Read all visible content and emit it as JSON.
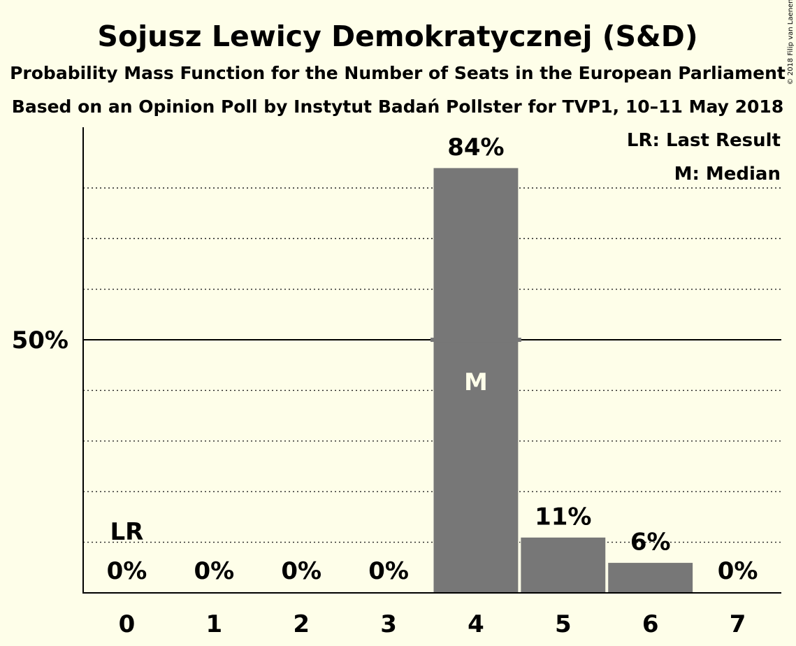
{
  "chart_data": {
    "type": "bar",
    "title": "Sojusz Lewicy Demokratycznej (S&D)",
    "subtitle_1": "Probability Mass Function for the Number of Seats in the European Parliament",
    "subtitle_2": "Based on an Opinion Poll by Instytut Badań Pollster for TVP1, 10–11 May 2018",
    "copyright": "© 2018 Filip van Laenen",
    "categories": [
      "0",
      "1",
      "2",
      "3",
      "4",
      "5",
      "6",
      "7"
    ],
    "values": [
      0,
      0,
      0,
      0,
      84,
      11,
      6,
      0
    ],
    "value_labels": [
      "0%",
      "0%",
      "0%",
      "0%",
      "84%",
      "11%",
      "6%",
      "0%"
    ],
    "ylim": [
      0,
      92
    ],
    "y_tick_label": "50%",
    "y_tick_value": 50,
    "gridlines": [
      10,
      20,
      30,
      40,
      60,
      70,
      80
    ],
    "last_result_seat": 0,
    "last_result_marker": "LR",
    "median_seat": 4,
    "median_marker": "M",
    "legend": [
      "LR: Last Result",
      "M: Median"
    ],
    "legend_position": "top-right",
    "bar_color": "#777777"
  }
}
